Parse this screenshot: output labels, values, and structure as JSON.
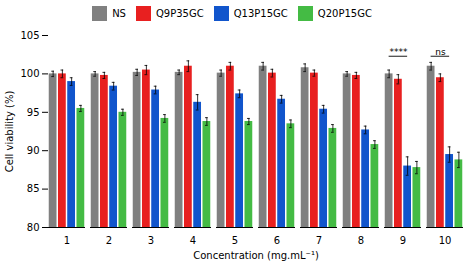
{
  "chart_data": {
    "type": "bar",
    "xlabel": "Concentration (mg.mL⁻¹)",
    "ylabel": "Cell viability (%)",
    "categories": [
      1,
      2,
      3,
      4,
      5,
      6,
      7,
      8,
      9,
      10
    ],
    "series": [
      {
        "name": "NS",
        "color": "#808080",
        "values": [
          100.0,
          100.0,
          100.2,
          100.2,
          100.1,
          101.0,
          100.8,
          100.0,
          100.0,
          101.0
        ],
        "errors": [
          0.35,
          0.3,
          0.4,
          0.3,
          0.4,
          0.5,
          0.5,
          0.3,
          0.5,
          0.5
        ]
      },
      {
        "name": "Q9P35GC",
        "color": "#e82020",
        "values": [
          100.0,
          99.8,
          100.5,
          101.0,
          101.0,
          100.1,
          100.1,
          99.8,
          99.3,
          99.5
        ],
        "errors": [
          0.5,
          0.4,
          0.6,
          0.7,
          0.5,
          0.5,
          0.4,
          0.4,
          0.6,
          0.5
        ]
      },
      {
        "name": "Q13P15GC",
        "color": "#1155cc",
        "values": [
          99.0,
          98.4,
          97.9,
          96.3,
          97.4,
          96.7,
          95.4,
          92.7,
          88.0,
          89.5
        ],
        "errors": [
          0.5,
          0.5,
          0.5,
          1.0,
          0.5,
          0.5,
          0.5,
          0.5,
          1.2,
          1.0
        ]
      },
      {
        "name": "Q20P15GC",
        "color": "#44bb44",
        "values": [
          95.5,
          95.0,
          94.2,
          93.8,
          93.8,
          93.5,
          92.9,
          90.8,
          87.8,
          88.8
        ],
        "errors": [
          0.4,
          0.4,
          0.5,
          0.5,
          0.4,
          0.5,
          0.5,
          0.5,
          0.8,
          1.0
        ]
      }
    ],
    "ylim": [
      80,
      105
    ],
    "yticks": [
      80,
      85,
      90,
      95,
      100,
      105
    ],
    "grid": false,
    "legend": "upper center",
    "annotations": [
      {
        "text": "****",
        "category": 9,
        "from": "NS",
        "to": "Q13P15GC",
        "line_y": 102.3,
        "text_y": 102.5
      },
      {
        "text": "ns",
        "category": 10,
        "from": "NS",
        "to": "Q13P15GC",
        "line_y": 102.3,
        "text_y": 102.5
      }
    ]
  }
}
